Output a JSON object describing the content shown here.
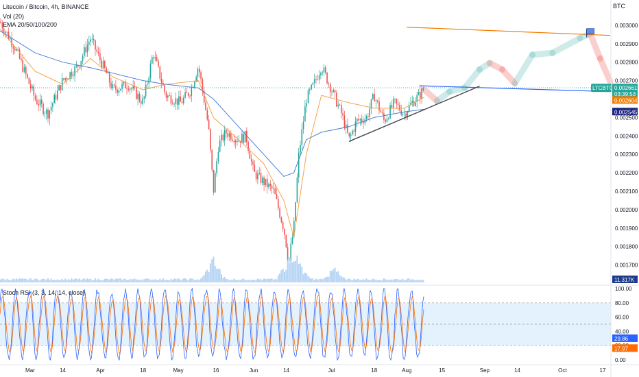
{
  "header": {
    "symbol_line": "Litecoin / Bitcoin, 4h, BINANCE",
    "vol_line": "Vol (20)",
    "ema_line": "EMA 20/50/100/200",
    "currency": "BTC"
  },
  "colors": {
    "up": "#26a69a",
    "down": "#ef5350",
    "ema_fast": "#f5a14a",
    "ema_slow": "#4a7fd6",
    "orange_line": "#f57c00",
    "blue_line": "#2962ff",
    "trend_line": "#434651",
    "stoch_k": "#2962ff",
    "stoch_d": "#ff6d00",
    "band": "#e3f2fd"
  },
  "chart_data": [
    {
      "type": "candlestick",
      "title": "Litecoin / Bitcoin, 4h, BINANCE",
      "ylabel": "BTC",
      "ylim": [
        0.00165,
        0.0031
      ],
      "y_ticks": [
        "0.003000",
        "0.002900",
        "0.002800",
        "0.002700",
        "0.002600",
        "0.002500",
        "0.002400",
        "0.002300",
        "0.002200",
        "0.002100",
        "0.002000",
        "0.001900",
        "0.001800",
        "0.001700"
      ],
      "x_ticks": [
        "Mar",
        "14",
        "Apr",
        "18",
        "May",
        "16",
        "Jun",
        "14",
        "Jul",
        "18",
        "Aug",
        "15",
        "Sep",
        "14",
        "Oct",
        "17"
      ],
      "series": [
        {
          "name": "LTCBTC",
          "close_path": [
            [
              "Feb 20",
              0.00302
            ],
            [
              "Feb 26",
              0.00288
            ],
            [
              "Mar 3",
              0.0026
            ],
            [
              "Mar 8",
              0.00252
            ],
            [
              "Mar 14",
              0.0027
            ],
            [
              "Mar 20",
              0.00278
            ],
            [
              "Mar 25",
              0.00293
            ],
            [
              "Mar 31",
              0.00275
            ],
            [
              "Apr 6",
              0.00265
            ],
            [
              "Apr 12",
              0.00268
            ],
            [
              "Apr 18",
              0.00258
            ],
            [
              "Apr 22",
              0.00285
            ],
            [
              "Apr 27",
              0.00262
            ],
            [
              "May 2",
              0.00258
            ],
            [
              "May 6",
              0.00265
            ],
            [
              "May 9",
              0.00278
            ],
            [
              "May 11",
              0.00262
            ],
            [
              "May 13",
              0.00245
            ],
            [
              "May 15",
              0.0021
            ],
            [
              "May 17",
              0.00235
            ],
            [
              "May 20",
              0.00242
            ],
            [
              "May 25",
              0.00238
            ],
            [
              "May 28",
              0.0024
            ],
            [
              "Jun 1",
              0.0022
            ],
            [
              "Jun 5",
              0.00215
            ],
            [
              "Jun 9",
              0.0021
            ],
            [
              "Jun 13",
              0.0019
            ],
            [
              "Jun 15",
              0.00172
            ],
            [
              "Jun 17",
              0.0019
            ],
            [
              "Jun 19",
              0.0023
            ],
            [
              "Jun 22",
              0.0026
            ],
            [
              "Jun 25",
              0.00268
            ],
            [
              "Jun 28",
              0.00278
            ],
            [
              "Jul 2",
              0.00262
            ],
            [
              "Jul 5",
              0.00252
            ],
            [
              "Jul 8",
              0.00238
            ],
            [
              "Jul 11",
              0.00248
            ],
            [
              "Jul 15",
              0.0025
            ],
            [
              "Jul 18",
              0.00262
            ],
            [
              "Jul 22",
              0.00248
            ],
            [
              "Jul 26",
              0.00258
            ],
            [
              "Jul 30",
              0.00252
            ],
            [
              "Aug 3",
              0.00258
            ],
            [
              "Aug 6",
              0.00262
            ],
            [
              "Aug 8",
              0.00266
            ]
          ]
        },
        {
          "name": "EMA fast",
          "path": [
            [
              "Feb 20",
              0.00298
            ],
            [
              "Mar 3",
              0.00275
            ],
            [
              "Mar 14",
              0.00268
            ],
            [
              "Mar 25",
              0.00282
            ],
            [
              "Apr 6",
              0.00272
            ],
            [
              "Apr 18",
              0.00265
            ],
            [
              "Apr 27",
              0.00268
            ],
            [
              "May 9",
              0.0027
            ],
            [
              "May 15",
              0.0025
            ],
            [
              "May 25",
              0.00238
            ],
            [
              "Jun 5",
              0.00225
            ],
            [
              "Jun 13",
              0.00205
            ],
            [
              "Jun 17",
              0.00185
            ],
            [
              "Jun 22",
              0.0023
            ],
            [
              "Jun 28",
              0.00262
            ],
            [
              "Jul 8",
              0.00258
            ],
            [
              "Jul 18",
              0.00255
            ],
            [
              "Jul 30",
              0.00255
            ],
            [
              "Aug 8",
              0.00261
            ]
          ]
        },
        {
          "name": "EMA slow",
          "path": [
            [
              "Feb 20",
              0.00297
            ],
            [
              "Mar 3",
              0.00285
            ],
            [
              "Mar 14",
              0.0028
            ],
            [
              "Mar 25",
              0.00277
            ],
            [
              "Apr 6",
              0.00274
            ],
            [
              "Apr 18",
              0.0027
            ],
            [
              "Apr 27",
              0.00268
            ],
            [
              "May 9",
              0.00266
            ],
            [
              "May 15",
              0.0026
            ],
            [
              "May 25",
              0.00245
            ],
            [
              "Jun 5",
              0.0023
            ],
            [
              "Jun 13",
              0.00218
            ],
            [
              "Jun 17",
              0.0022
            ],
            [
              "Jun 22",
              0.00238
            ],
            [
              "Jun 28",
              0.00242
            ],
            [
              "Jul 8",
              0.00245
            ],
            [
              "Jul 18",
              0.0025
            ],
            [
              "Jul 30",
              0.00253
            ],
            [
              "Aug 8",
              0.002545
            ]
          ]
        }
      ],
      "drawings": {
        "orange_resistance": [
          [
            "Jul 31",
            0.00299
          ],
          [
            "Oct 20",
            0.002945
          ]
        ],
        "blue_level": [
          [
            "Aug 6",
            0.002672
          ],
          [
            "Oct 20",
            0.00264
          ]
        ],
        "rising_trendline": [
          [
            "Jul 8",
            0.00237
          ],
          [
            "Aug 30",
            0.00267
          ]
        ],
        "projection_path": [
          [
            "Aug 8",
            0.00265
          ],
          [
            "Aug 13",
            0.00259
          ],
          [
            "Aug 18",
            0.00264
          ],
          [
            "Aug 24",
            0.00266
          ],
          [
            "Aug 30",
            0.00276
          ],
          [
            "Sep 3",
            0.002795
          ],
          [
            "Sep 8",
            0.00276
          ],
          [
            "Sep 13",
            0.002685
          ],
          [
            "Sep 20",
            0.00284
          ],
          [
            "Sep 28",
            0.00285
          ],
          [
            "Oct 8",
            0.00293
          ],
          [
            "Oct 12",
            0.002955
          ],
          [
            "Oct 16",
            0.00282
          ],
          [
            "Oct 20",
            0.002695
          ]
        ],
        "flag_marker": [
          "Oct 12",
          0.00296
        ]
      },
      "price_badges": [
        {
          "label": "LTCBTC",
          "value": "0.002661",
          "countdown": "03:39:53",
          "color": "#26a69a"
        },
        {
          "value": "0.002604",
          "color": "#f57c00"
        },
        {
          "value": "0.002545",
          "color": "#1a237e"
        }
      ]
    },
    {
      "type": "bar",
      "name": "Vol (20)",
      "last_value": "11.317K",
      "spikes": [
        [
          "May 15",
          3
        ],
        [
          "Jun 15",
          3.5
        ],
        [
          "Jun 19",
          2.5
        ],
        [
          "Jul 2",
          1.6
        ]
      ]
    },
    {
      "type": "line",
      "title": "Stoch RSI (3, 3, 14, 14, close)",
      "ylim": [
        0,
        100
      ],
      "y_ticks": [
        "100.00",
        "80.00",
        "60.00",
        "40.00",
        "20.00",
        "0.00"
      ],
      "band": [
        20,
        80
      ],
      "last_values": {
        "k": "29.86",
        "d": "17.97"
      }
    }
  ]
}
